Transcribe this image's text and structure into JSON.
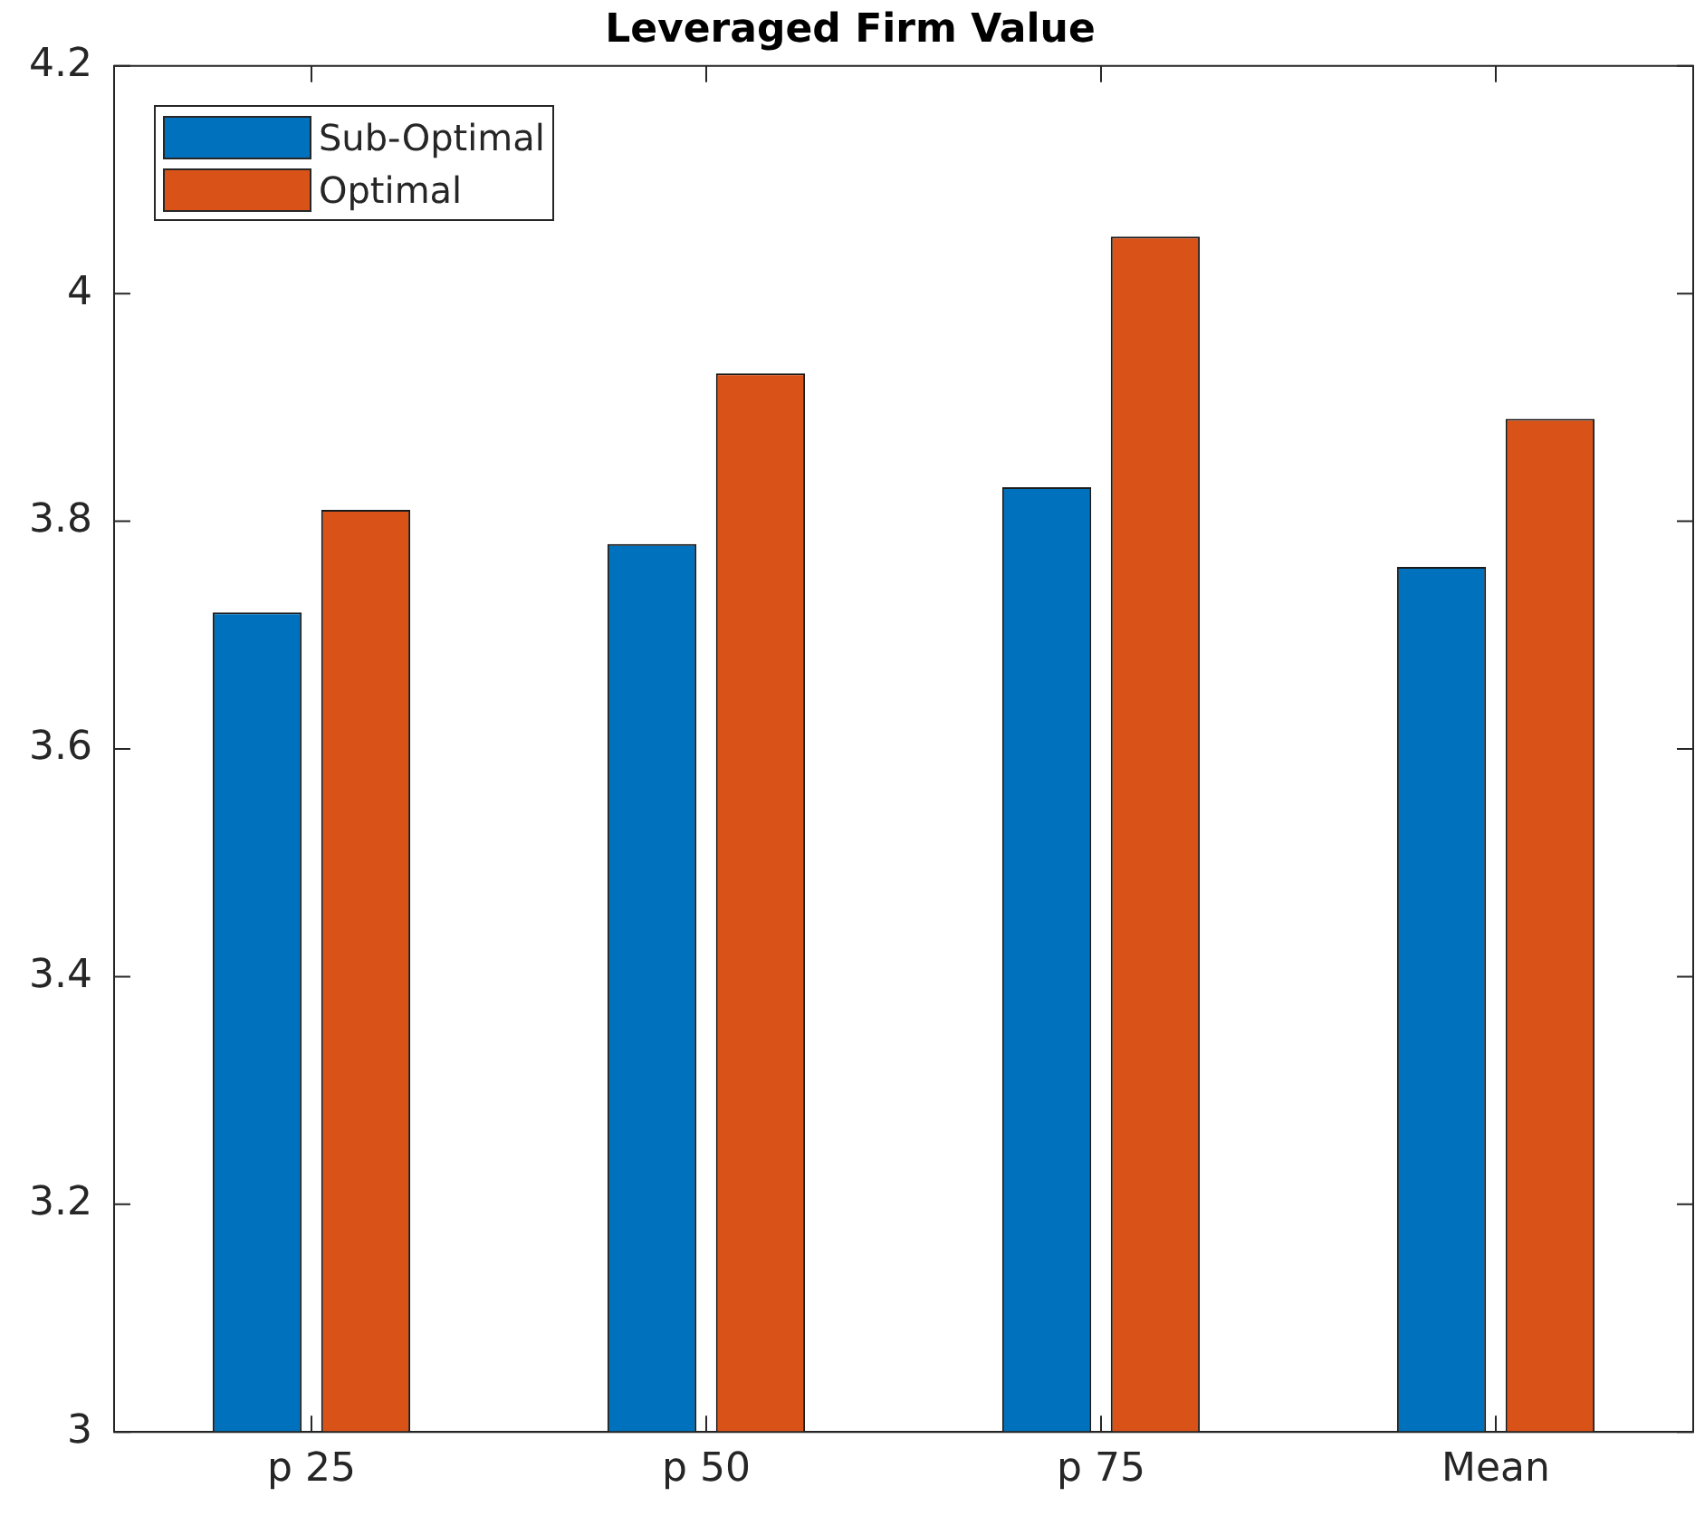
{
  "chart_data": {
    "type": "bar",
    "title": "Leveraged Firm Value",
    "categories": [
      "p 25",
      "p 50",
      "p 75",
      "Mean"
    ],
    "series": [
      {
        "name": "Sub-Optimal",
        "color": "#0072bd",
        "values": [
          3.72,
          3.78,
          3.83,
          3.76
        ]
      },
      {
        "name": "Optimal",
        "color": "#d95319",
        "values": [
          3.81,
          3.93,
          4.05,
          3.89
        ]
      }
    ],
    "ylim": [
      3,
      4.2
    ],
    "yticks": [
      3,
      3.2,
      3.4,
      3.6,
      3.8,
      4,
      4.2
    ],
    "grid": false,
    "legend": "top left"
  }
}
